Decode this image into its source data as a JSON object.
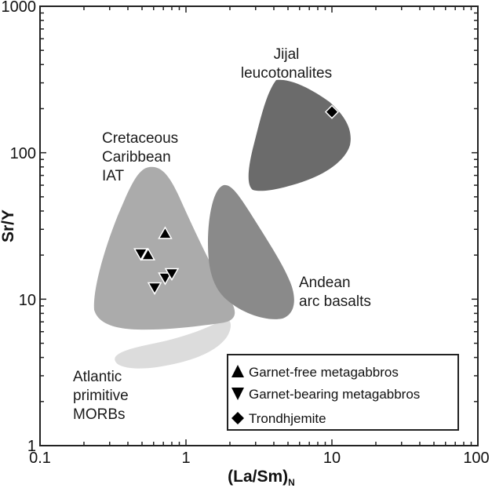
{
  "chart_data": {
    "type": "scatter",
    "title": "",
    "xlabel": "(La/Sm)N",
    "xlabel_main": "(La/Sm)",
    "xlabel_sub": "N",
    "ylabel": "Sr/Y",
    "xscale": "log",
    "yscale": "log",
    "xlim": [
      0.1,
      100
    ],
    "ylim": [
      1,
      1000
    ],
    "x_ticks": [
      "0.1",
      "1",
      "10",
      "100"
    ],
    "y_ticks": [
      "1",
      "10",
      "100",
      "1000"
    ],
    "grid": false,
    "legend_position": "lower right",
    "series": [
      {
        "name": "Garnet-free metagabbros",
        "marker": "triangle-up",
        "color": "#000000",
        "points": [
          {
            "x": 0.72,
            "y": 28
          },
          {
            "x": 0.55,
            "y": 20
          }
        ]
      },
      {
        "name": "Garnet-bearing metagabbros",
        "marker": "triangle-down",
        "color": "#000000",
        "points": [
          {
            "x": 0.49,
            "y": 20.5
          },
          {
            "x": 0.72,
            "y": 14
          },
          {
            "x": 0.8,
            "y": 15
          },
          {
            "x": 0.61,
            "y": 12
          }
        ]
      },
      {
        "name": "Trondhjemite",
        "marker": "diamond",
        "color": "#000000",
        "points": [
          {
            "x": 10,
            "y": 190
          }
        ]
      }
    ],
    "regions": [
      {
        "name": "Jijal leucotonalites",
        "color": "#6b6b6b"
      },
      {
        "name": "Andean arc basalts",
        "color": "#8a8a8a"
      },
      {
        "name": "Cretaceous Caribbean IAT",
        "color": "#ababab"
      },
      {
        "name": "Atlantic primitive MORBs",
        "color": "#dcdcdc"
      }
    ]
  },
  "labels": {
    "jijal": [
      "Jijal",
      "leucotonalites"
    ],
    "caribbean": [
      "Cretaceous",
      "Caribbean",
      "IAT"
    ],
    "andean": [
      "Andean",
      "arc basalts"
    ],
    "atlantic": [
      "Atlantic",
      "primitive",
      "MORBs"
    ]
  },
  "legend": {
    "items": [
      {
        "label": "Garnet-free metagabbros"
      },
      {
        "label": "Garnet-bearing metagabbros"
      },
      {
        "label": "Trondhjemite"
      }
    ]
  }
}
